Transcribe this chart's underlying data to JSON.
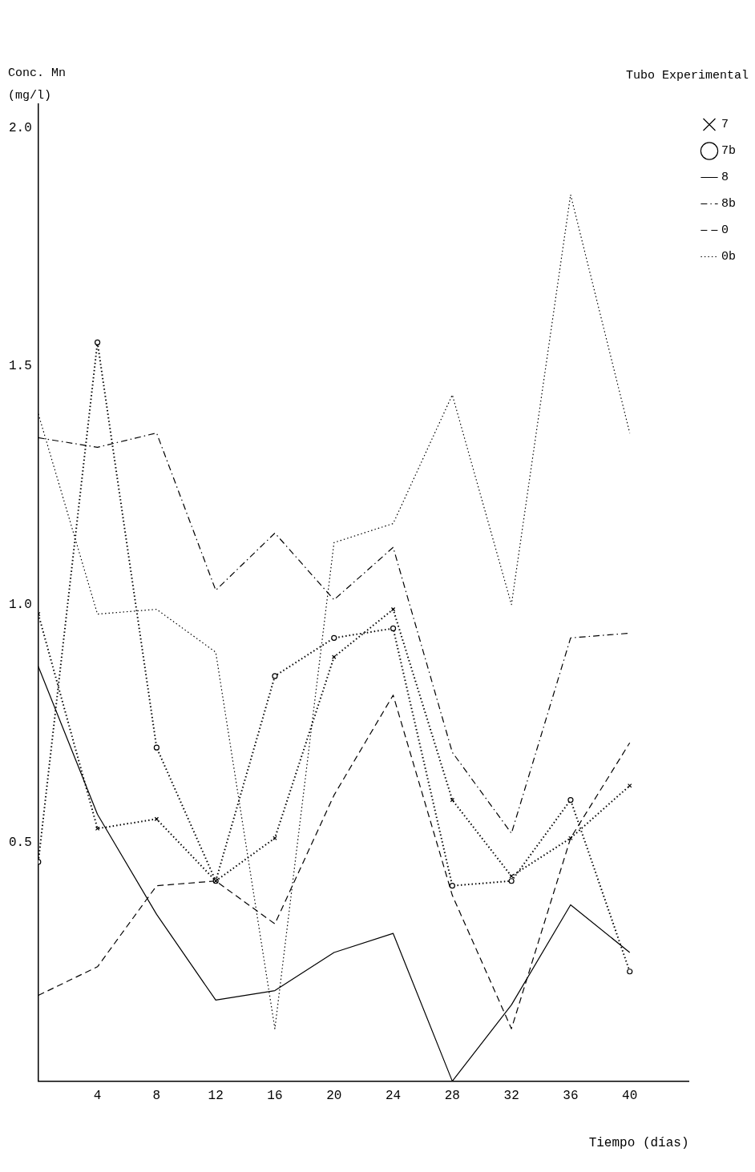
{
  "chart_data": {
    "type": "line",
    "ylabel": "Conc. Mn\n(mg/l)",
    "xlabel": "Tiempo (días)",
    "legend_title": "Tubo Experimental",
    "legend": "top right",
    "grid": false,
    "x": [
      0,
      4,
      8,
      12,
      16,
      20,
      24,
      28,
      32,
      36,
      40
    ],
    "xlim": [
      0,
      44
    ],
    "xticks": [
      4,
      8,
      12,
      16,
      20,
      24,
      28,
      32,
      36,
      40
    ],
    "ylim": [
      0,
      2.05
    ],
    "yticks": [
      0.5,
      {
        "value": 1,
        "label": "1.0"
      },
      1.5,
      {
        "value": 2,
        "label": "2.0"
      }
    ],
    "series": [
      {
        "name": "7",
        "color": "#000000",
        "marker": "cross",
        "line_style": "dotted",
        "values": [
          0.98,
          0.53,
          0.55,
          0.42,
          0.51,
          0.89,
          0.99,
          0.59,
          0.43,
          0.51,
          0.62
        ]
      },
      {
        "name": "7b",
        "color": "#000000",
        "marker": "circle",
        "line_style": "dotted",
        "values": [
          0.46,
          1.55,
          0.7,
          0.42,
          0.85,
          0.93,
          0.95,
          0.41,
          0.42,
          0.59,
          0.23
        ]
      },
      {
        "name": "8",
        "color": "#000000",
        "marker": "none",
        "line_style": "solid",
        "values": [
          0.87,
          0.56,
          0.35,
          0.17,
          0.19,
          0.27,
          0.31,
          0,
          0.16,
          0.37,
          0.27
        ]
      },
      {
        "name": "8b",
        "color": "#000000",
        "marker": "none",
        "line_style": "dashdot",
        "values": [
          1.35,
          1.33,
          1.36,
          1.03,
          1.15,
          1.01,
          1.12,
          0.69,
          0.52,
          0.93,
          0.94
        ]
      },
      {
        "name": "0",
        "color": "#000000",
        "marker": "none",
        "line_style": "dashed",
        "values": [
          0.18,
          0.24,
          0.41,
          0.42,
          0.33,
          0.6,
          0.81,
          0.39,
          0.11,
          0.51,
          0.71
        ]
      },
      {
        "name": "0b",
        "color": "#000000",
        "marker": "none",
        "line_style": "dotted",
        "values": [
          1.4,
          0.98,
          0.99,
          0.9,
          0.11,
          1.13,
          1.17,
          1.44,
          1,
          1.86,
          1.36
        ]
      }
    ]
  }
}
